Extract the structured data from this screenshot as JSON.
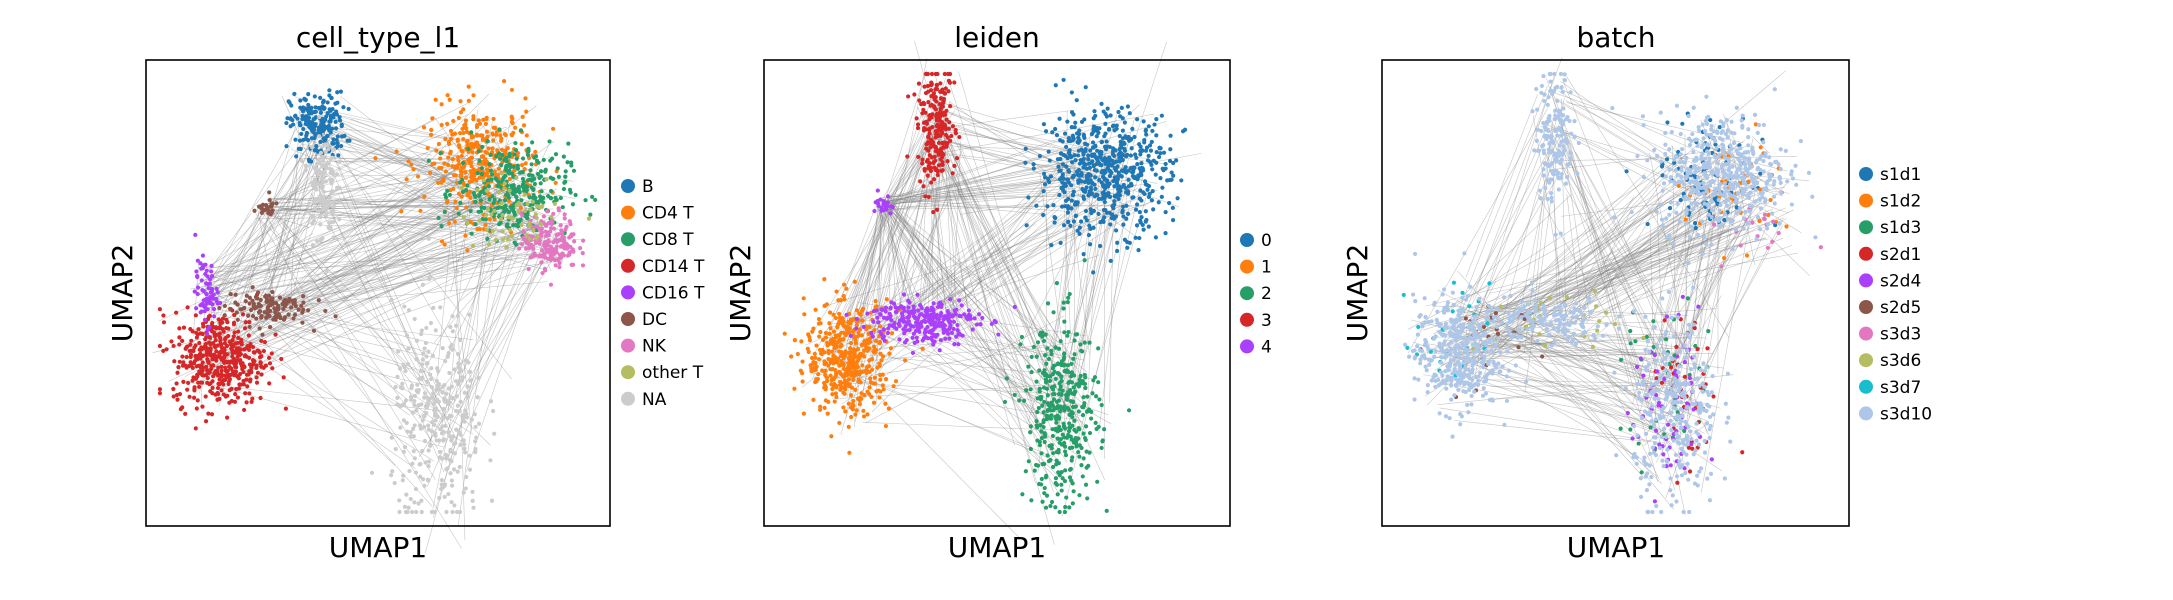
{
  "chart_data": [
    {
      "type": "scatter",
      "title": "cell_type_l1",
      "xlabel": "UMAP1",
      "ylabel": "UMAP2",
      "legend_position": "right",
      "ticks": "none",
      "series": [
        {
          "name": "B",
          "color": "#1f77b4",
          "clusters": [
            {
              "x": 0.37,
              "y": 0.86,
              "sx": 0.03,
              "sy": 0.035,
              "n": 200
            }
          ]
        },
        {
          "name": "CD4 T",
          "color": "#ff7f0e",
          "clusters": [
            {
              "x": 0.72,
              "y": 0.78,
              "sx": 0.06,
              "sy": 0.06,
              "n": 350
            }
          ]
        },
        {
          "name": "CD8 T",
          "color": "#279e68",
          "clusters": [
            {
              "x": 0.79,
              "y": 0.72,
              "sx": 0.06,
              "sy": 0.05,
              "n": 300
            }
          ]
        },
        {
          "name": "CD14 T",
          "color": "#d62728",
          "clusters": [
            {
              "x": 0.16,
              "y": 0.36,
              "sx": 0.05,
              "sy": 0.05,
              "n": 450
            }
          ]
        },
        {
          "name": "CD16 T",
          "color": "#aa40fc",
          "clusters": [
            {
              "x": 0.13,
              "y": 0.5,
              "sx": 0.012,
              "sy": 0.035,
              "n": 70
            }
          ]
        },
        {
          "name": "DC",
          "color": "#8c564b",
          "clusters": [
            {
              "x": 0.26,
              "y": 0.47,
              "sx": 0.045,
              "sy": 0.02,
              "n": 120
            },
            {
              "x": 0.26,
              "y": 0.68,
              "sx": 0.015,
              "sy": 0.01,
              "n": 25
            }
          ]
        },
        {
          "name": "NK",
          "color": "#e377c2",
          "clusters": [
            {
              "x": 0.87,
              "y": 0.61,
              "sx": 0.03,
              "sy": 0.03,
              "n": 180
            }
          ]
        },
        {
          "name": "other T",
          "color": "#b5bd61",
          "clusters": [
            {
              "x": 0.8,
              "y": 0.67,
              "sx": 0.06,
              "sy": 0.04,
              "n": 60
            }
          ]
        },
        {
          "name": "NA",
          "color": "#cccccc",
          "clusters": [
            {
              "x": 0.38,
              "y": 0.73,
              "sx": 0.015,
              "sy": 0.06,
              "n": 120
            },
            {
              "x": 0.63,
              "y": 0.22,
              "sx": 0.05,
              "sy": 0.12,
              "n": 320
            }
          ]
        }
      ]
    },
    {
      "type": "scatter",
      "title": "leiden",
      "xlabel": "UMAP1",
      "ylabel": "UMAP2",
      "legend_position": "right",
      "ticks": "none",
      "series": [
        {
          "name": "0",
          "color": "#1f77b4",
          "clusters": [
            {
              "x": 0.73,
              "y": 0.76,
              "sx": 0.07,
              "sy": 0.065,
              "n": 600
            }
          ]
        },
        {
          "name": "1",
          "color": "#ff7f0e",
          "clusters": [
            {
              "x": 0.18,
              "y": 0.36,
              "sx": 0.045,
              "sy": 0.06,
              "n": 450
            }
          ]
        },
        {
          "name": "2",
          "color": "#279e68",
          "clusters": [
            {
              "x": 0.64,
              "y": 0.24,
              "sx": 0.04,
              "sy": 0.1,
              "n": 380
            }
          ]
        },
        {
          "name": "3",
          "color": "#d62728",
          "clusters": [
            {
              "x": 0.37,
              "y": 0.85,
              "sx": 0.02,
              "sy": 0.06,
              "n": 220
            }
          ]
        },
        {
          "name": "4",
          "color": "#aa40fc",
          "clusters": [
            {
              "x": 0.34,
              "y": 0.44,
              "sx": 0.06,
              "sy": 0.025,
              "n": 260
            },
            {
              "x": 0.26,
              "y": 0.69,
              "sx": 0.01,
              "sy": 0.01,
              "n": 25
            }
          ]
        }
      ]
    },
    {
      "type": "scatter",
      "title": "batch",
      "xlabel": "UMAP1",
      "ylabel": "UMAP2",
      "legend_position": "right",
      "ticks": "none",
      "series": [
        {
          "name": "s1d1",
          "color": "#1f77b4",
          "clusters": [
            {
              "x": 0.7,
              "y": 0.75,
              "sx": 0.06,
              "sy": 0.06,
              "n": 90
            }
          ]
        },
        {
          "name": "s1d2",
          "color": "#ff7f0e",
          "clusters": [
            {
              "x": 0.75,
              "y": 0.72,
              "sx": 0.06,
              "sy": 0.06,
              "n": 40
            }
          ]
        },
        {
          "name": "s1d3",
          "color": "#279e68",
          "clusters": [
            {
              "x": 0.62,
              "y": 0.3,
              "sx": 0.05,
              "sy": 0.1,
              "n": 40
            }
          ]
        },
        {
          "name": "s2d1",
          "color": "#d62728",
          "clusters": [
            {
              "x": 0.65,
              "y": 0.28,
              "sx": 0.04,
              "sy": 0.09,
              "n": 40
            }
          ]
        },
        {
          "name": "s2d4",
          "color": "#aa40fc",
          "clusters": [
            {
              "x": 0.62,
              "y": 0.25,
              "sx": 0.04,
              "sy": 0.1,
              "n": 70
            }
          ]
        },
        {
          "name": "s2d5",
          "color": "#8c564b",
          "clusters": [
            {
              "x": 0.2,
              "y": 0.38,
              "sx": 0.05,
              "sy": 0.06,
              "n": 20
            }
          ]
        },
        {
          "name": "s3d3",
          "color": "#e377c2",
          "clusters": [
            {
              "x": 0.8,
              "y": 0.65,
              "sx": 0.05,
              "sy": 0.05,
              "n": 20
            }
          ]
        },
        {
          "name": "s3d6",
          "color": "#b5bd61",
          "clusters": [
            {
              "x": 0.35,
              "y": 0.42,
              "sx": 0.08,
              "sy": 0.04,
              "n": 25
            }
          ]
        },
        {
          "name": "s3d7",
          "color": "#17becf",
          "clusters": [
            {
              "x": 0.15,
              "y": 0.4,
              "sx": 0.04,
              "sy": 0.06,
              "n": 25
            }
          ]
        },
        {
          "name": "s3d10",
          "color": "#aec7e8",
          "clusters": [
            {
              "x": 0.73,
              "y": 0.76,
              "sx": 0.07,
              "sy": 0.065,
              "n": 450
            },
            {
              "x": 0.16,
              "y": 0.37,
              "sx": 0.045,
              "sy": 0.06,
              "n": 380
            },
            {
              "x": 0.37,
              "y": 0.84,
              "sx": 0.02,
              "sy": 0.07,
              "n": 160
            },
            {
              "x": 0.63,
              "y": 0.24,
              "sx": 0.045,
              "sy": 0.1,
              "n": 280
            },
            {
              "x": 0.35,
              "y": 0.44,
              "sx": 0.07,
              "sy": 0.025,
              "n": 150
            }
          ]
        }
      ]
    }
  ]
}
